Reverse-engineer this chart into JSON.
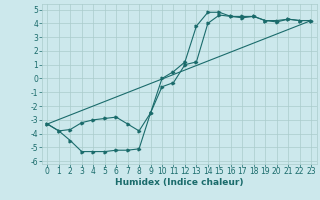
{
  "xlabel": "Humidex (Indice chaleur)",
  "xlim": [
    -0.5,
    23.5
  ],
  "ylim": [
    -6.2,
    5.4
  ],
  "yticks": [
    -6,
    -5,
    -4,
    -3,
    -2,
    -1,
    0,
    1,
    2,
    3,
    4,
    5
  ],
  "xticks": [
    0,
    1,
    2,
    3,
    4,
    5,
    6,
    7,
    8,
    9,
    10,
    11,
    12,
    13,
    14,
    15,
    16,
    17,
    18,
    19,
    20,
    21,
    22,
    23
  ],
  "bg_color": "#cce8ec",
  "grid_color": "#aacccc",
  "line_color": "#1a6b6b",
  "line1_x": [
    0,
    1,
    2,
    3,
    4,
    5,
    6,
    7,
    8,
    9,
    10,
    11,
    12,
    13,
    14,
    15,
    16,
    17,
    18,
    19,
    20,
    21,
    22,
    23
  ],
  "line1_y": [
    -3.3,
    -3.8,
    -4.5,
    -5.3,
    -5.3,
    -5.3,
    -5.2,
    -5.2,
    -5.1,
    -2.5,
    0.0,
    0.5,
    1.2,
    3.8,
    4.8,
    4.8,
    4.5,
    4.5,
    4.5,
    4.2,
    4.2,
    4.3,
    4.2,
    4.2
  ],
  "line2_x": [
    0,
    1,
    2,
    3,
    4,
    5,
    6,
    7,
    8,
    9,
    10,
    11,
    12,
    13,
    14,
    15,
    16,
    17,
    18,
    19,
    20,
    21,
    22,
    23
  ],
  "line2_y": [
    -3.3,
    -3.8,
    -3.7,
    -3.2,
    -3.0,
    -2.9,
    -2.8,
    -3.3,
    -3.8,
    -2.5,
    -0.6,
    -0.3,
    1.0,
    1.2,
    4.0,
    4.6,
    4.5,
    4.4,
    4.5,
    4.2,
    4.1,
    4.3,
    4.2,
    4.2
  ],
  "line3_x": [
    0,
    23
  ],
  "line3_y": [
    -3.3,
    4.2
  ],
  "tick_fontsize": 5.5,
  "xlabel_fontsize": 6.5
}
